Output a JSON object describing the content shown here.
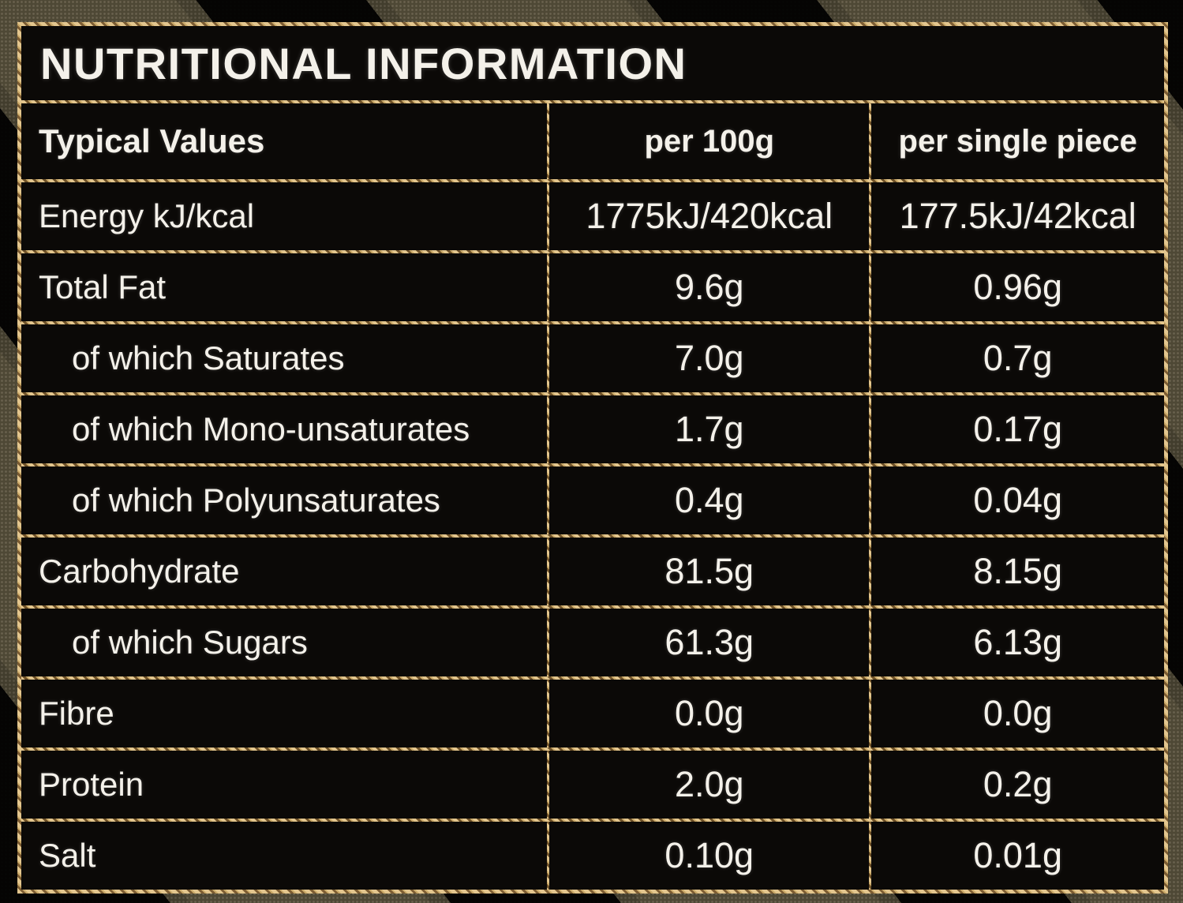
{
  "title": "NUTRITIONAL INFORMATION",
  "table": {
    "columns": {
      "label": "Typical Values",
      "per100g": "per 100g",
      "perPiece": "per single piece"
    },
    "rows": [
      {
        "label": "Energy kJ/kcal",
        "indent": false,
        "per100g": "1775kJ/420kcal",
        "perPiece": "177.5kJ/42kcal"
      },
      {
        "label": "Total Fat",
        "indent": false,
        "per100g": "9.6g",
        "perPiece": "0.96g"
      },
      {
        "label": "of which Saturates",
        "indent": true,
        "per100g": "7.0g",
        "perPiece": "0.7g"
      },
      {
        "label": "of which Mono-unsaturates",
        "indent": true,
        "per100g": "1.7g",
        "perPiece": "0.17g"
      },
      {
        "label": "of which Polyunsaturates",
        "indent": true,
        "per100g": "0.4g",
        "perPiece": "0.04g"
      },
      {
        "label": "Carbohydrate",
        "indent": false,
        "per100g": "81.5g",
        "perPiece": "8.15g"
      },
      {
        "label": "of which Sugars",
        "indent": true,
        "per100g": "61.3g",
        "perPiece": "6.13g"
      },
      {
        "label": "Fibre",
        "indent": false,
        "per100g": "0.0g",
        "perPiece": "0.0g"
      },
      {
        "label": "Protein",
        "indent": false,
        "per100g": "2.0g",
        "perPiece": "0.2g"
      },
      {
        "label": "Salt",
        "indent": false,
        "per100g": "0.10g",
        "perPiece": "0.01g"
      }
    ]
  },
  "colors": {
    "border_gold_light": "#e3c68e",
    "border_gold_dark": "#6e5128",
    "cell_background": "#0b0907",
    "text": "#f4f1ea",
    "package_olive": "#4e4835"
  }
}
